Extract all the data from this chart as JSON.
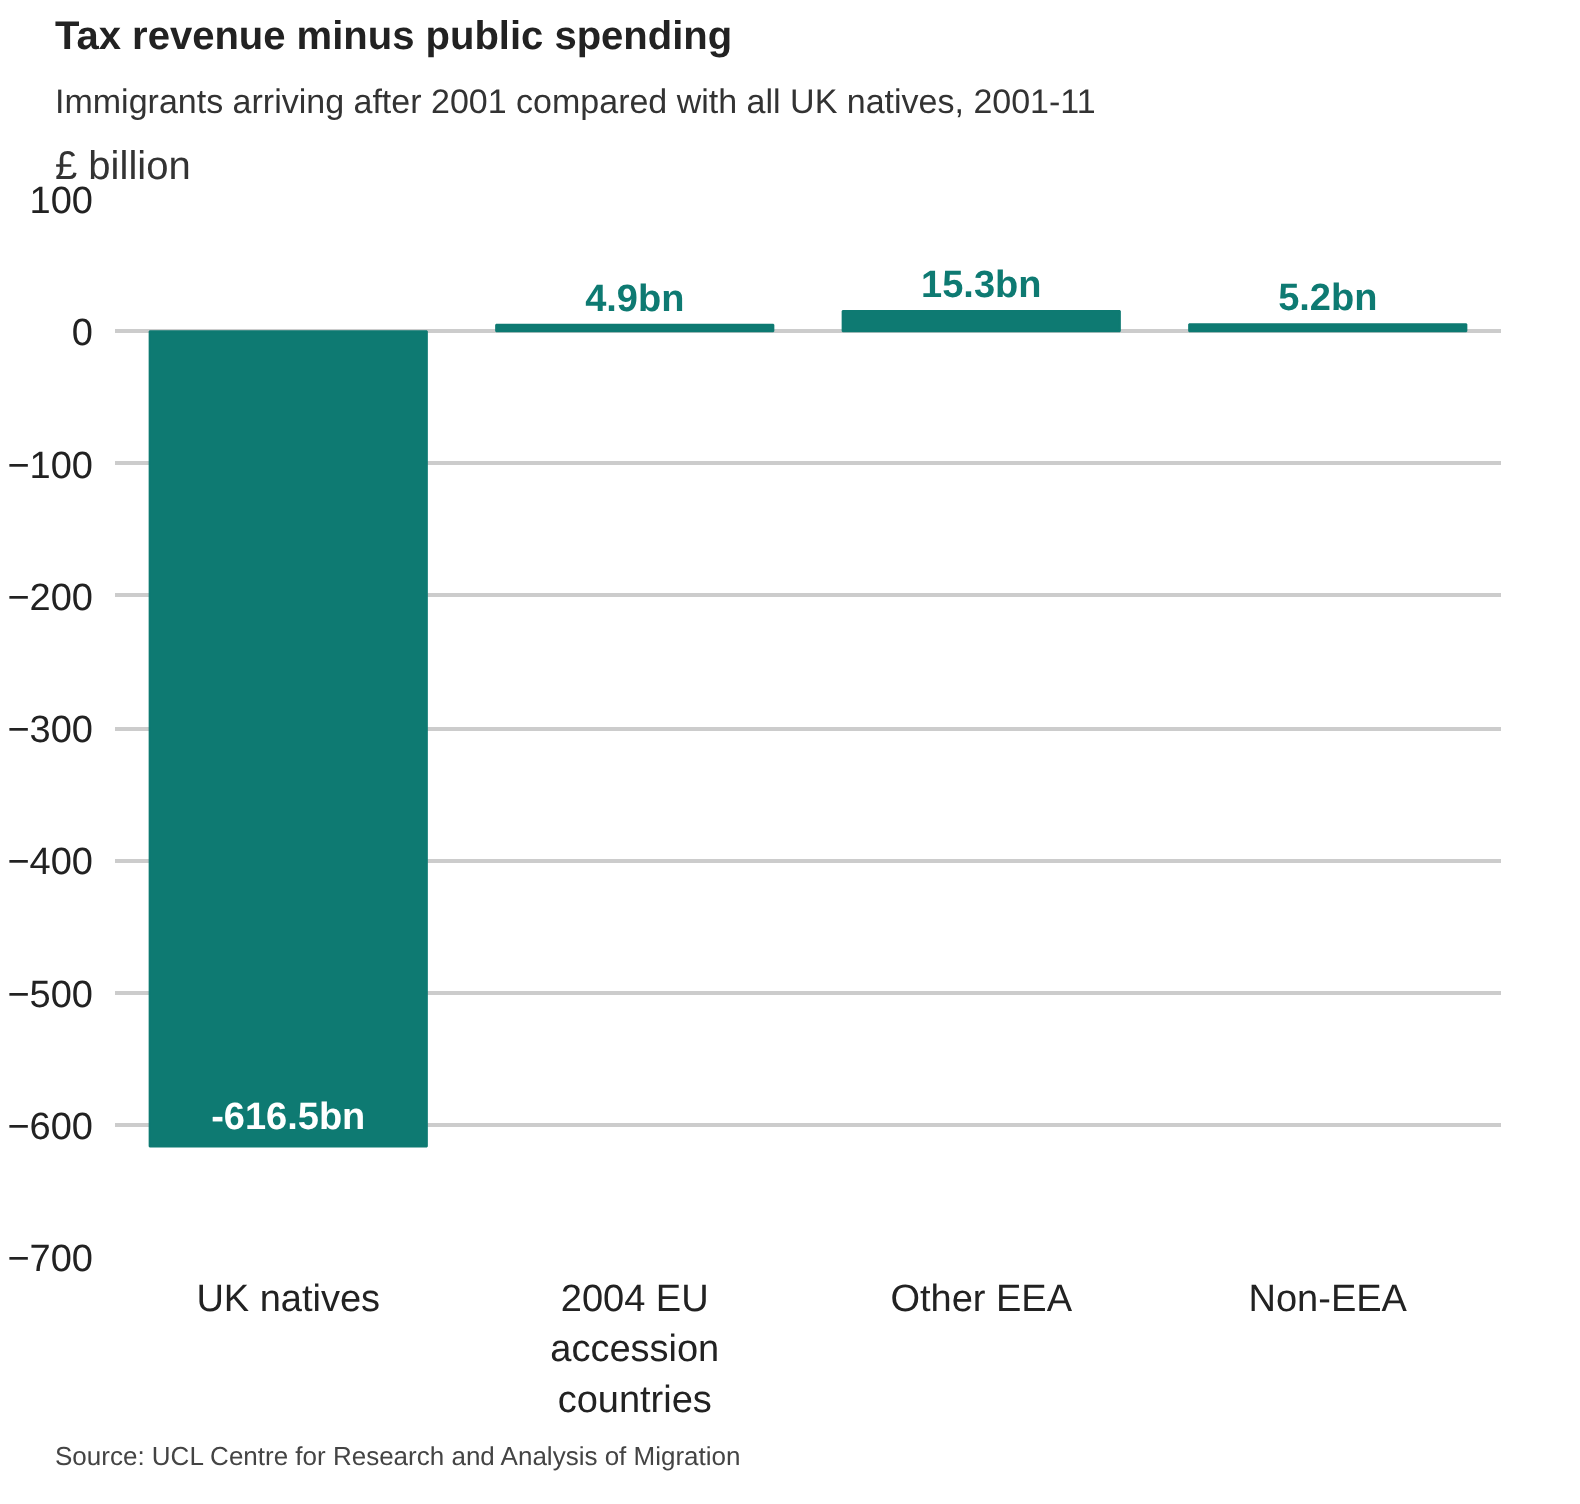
{
  "chart_data": {
    "type": "bar",
    "title": "Tax revenue minus public spending",
    "subtitle": "Immigrants arriving after 2001 compared with all UK natives, 2001-11",
    "ylabel": "£ billion",
    "categories": [
      "UK natives",
      "2004 EU accession countries",
      "Other EEA",
      "Non-EEA"
    ],
    "values": [
      -616.5,
      4.9,
      15.3,
      5.2
    ],
    "value_labels": [
      "-616.5bn",
      "4.9bn",
      "15.3bn",
      "5.2bn"
    ],
    "color": "#0e7a72",
    "ylim": [
      -700,
      100
    ],
    "yticks": [
      -700,
      -600,
      -500,
      -400,
      -300,
      -200,
      -100,
      0,
      100
    ],
    "grid": "y",
    "annotations": [
      "Source: UCL Centre for Research and Analysis of Migration"
    ]
  }
}
